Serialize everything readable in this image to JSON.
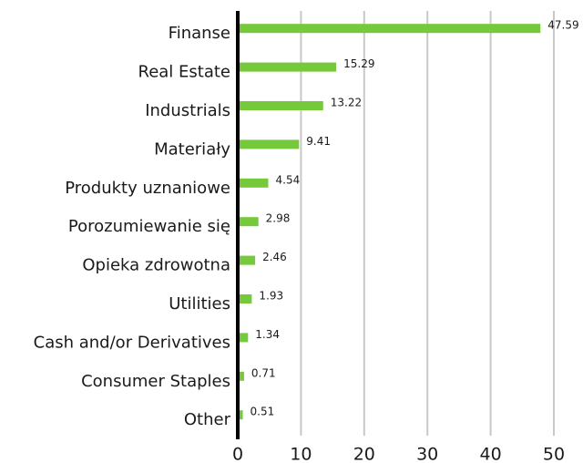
{
  "chart_data": {
    "type": "bar",
    "orientation": "horizontal",
    "categories": [
      "Finanse",
      "Real Estate",
      "Industrials",
      "Materiały",
      "Produkty uznaniowe",
      "Porozumiewanie się",
      "Opieka zdrowotna",
      "Utilities",
      "Cash and/or Derivatives",
      "Consumer Staples",
      "Other"
    ],
    "values": [
      47.59,
      15.29,
      13.22,
      9.41,
      4.54,
      2.98,
      2.46,
      1.93,
      1.34,
      0.71,
      0.51
    ],
    "color": "#76c93b",
    "xlim": [
      0,
      50
    ],
    "xticks": [
      0,
      10,
      20,
      30,
      40,
      50
    ],
    "grid": true
  }
}
